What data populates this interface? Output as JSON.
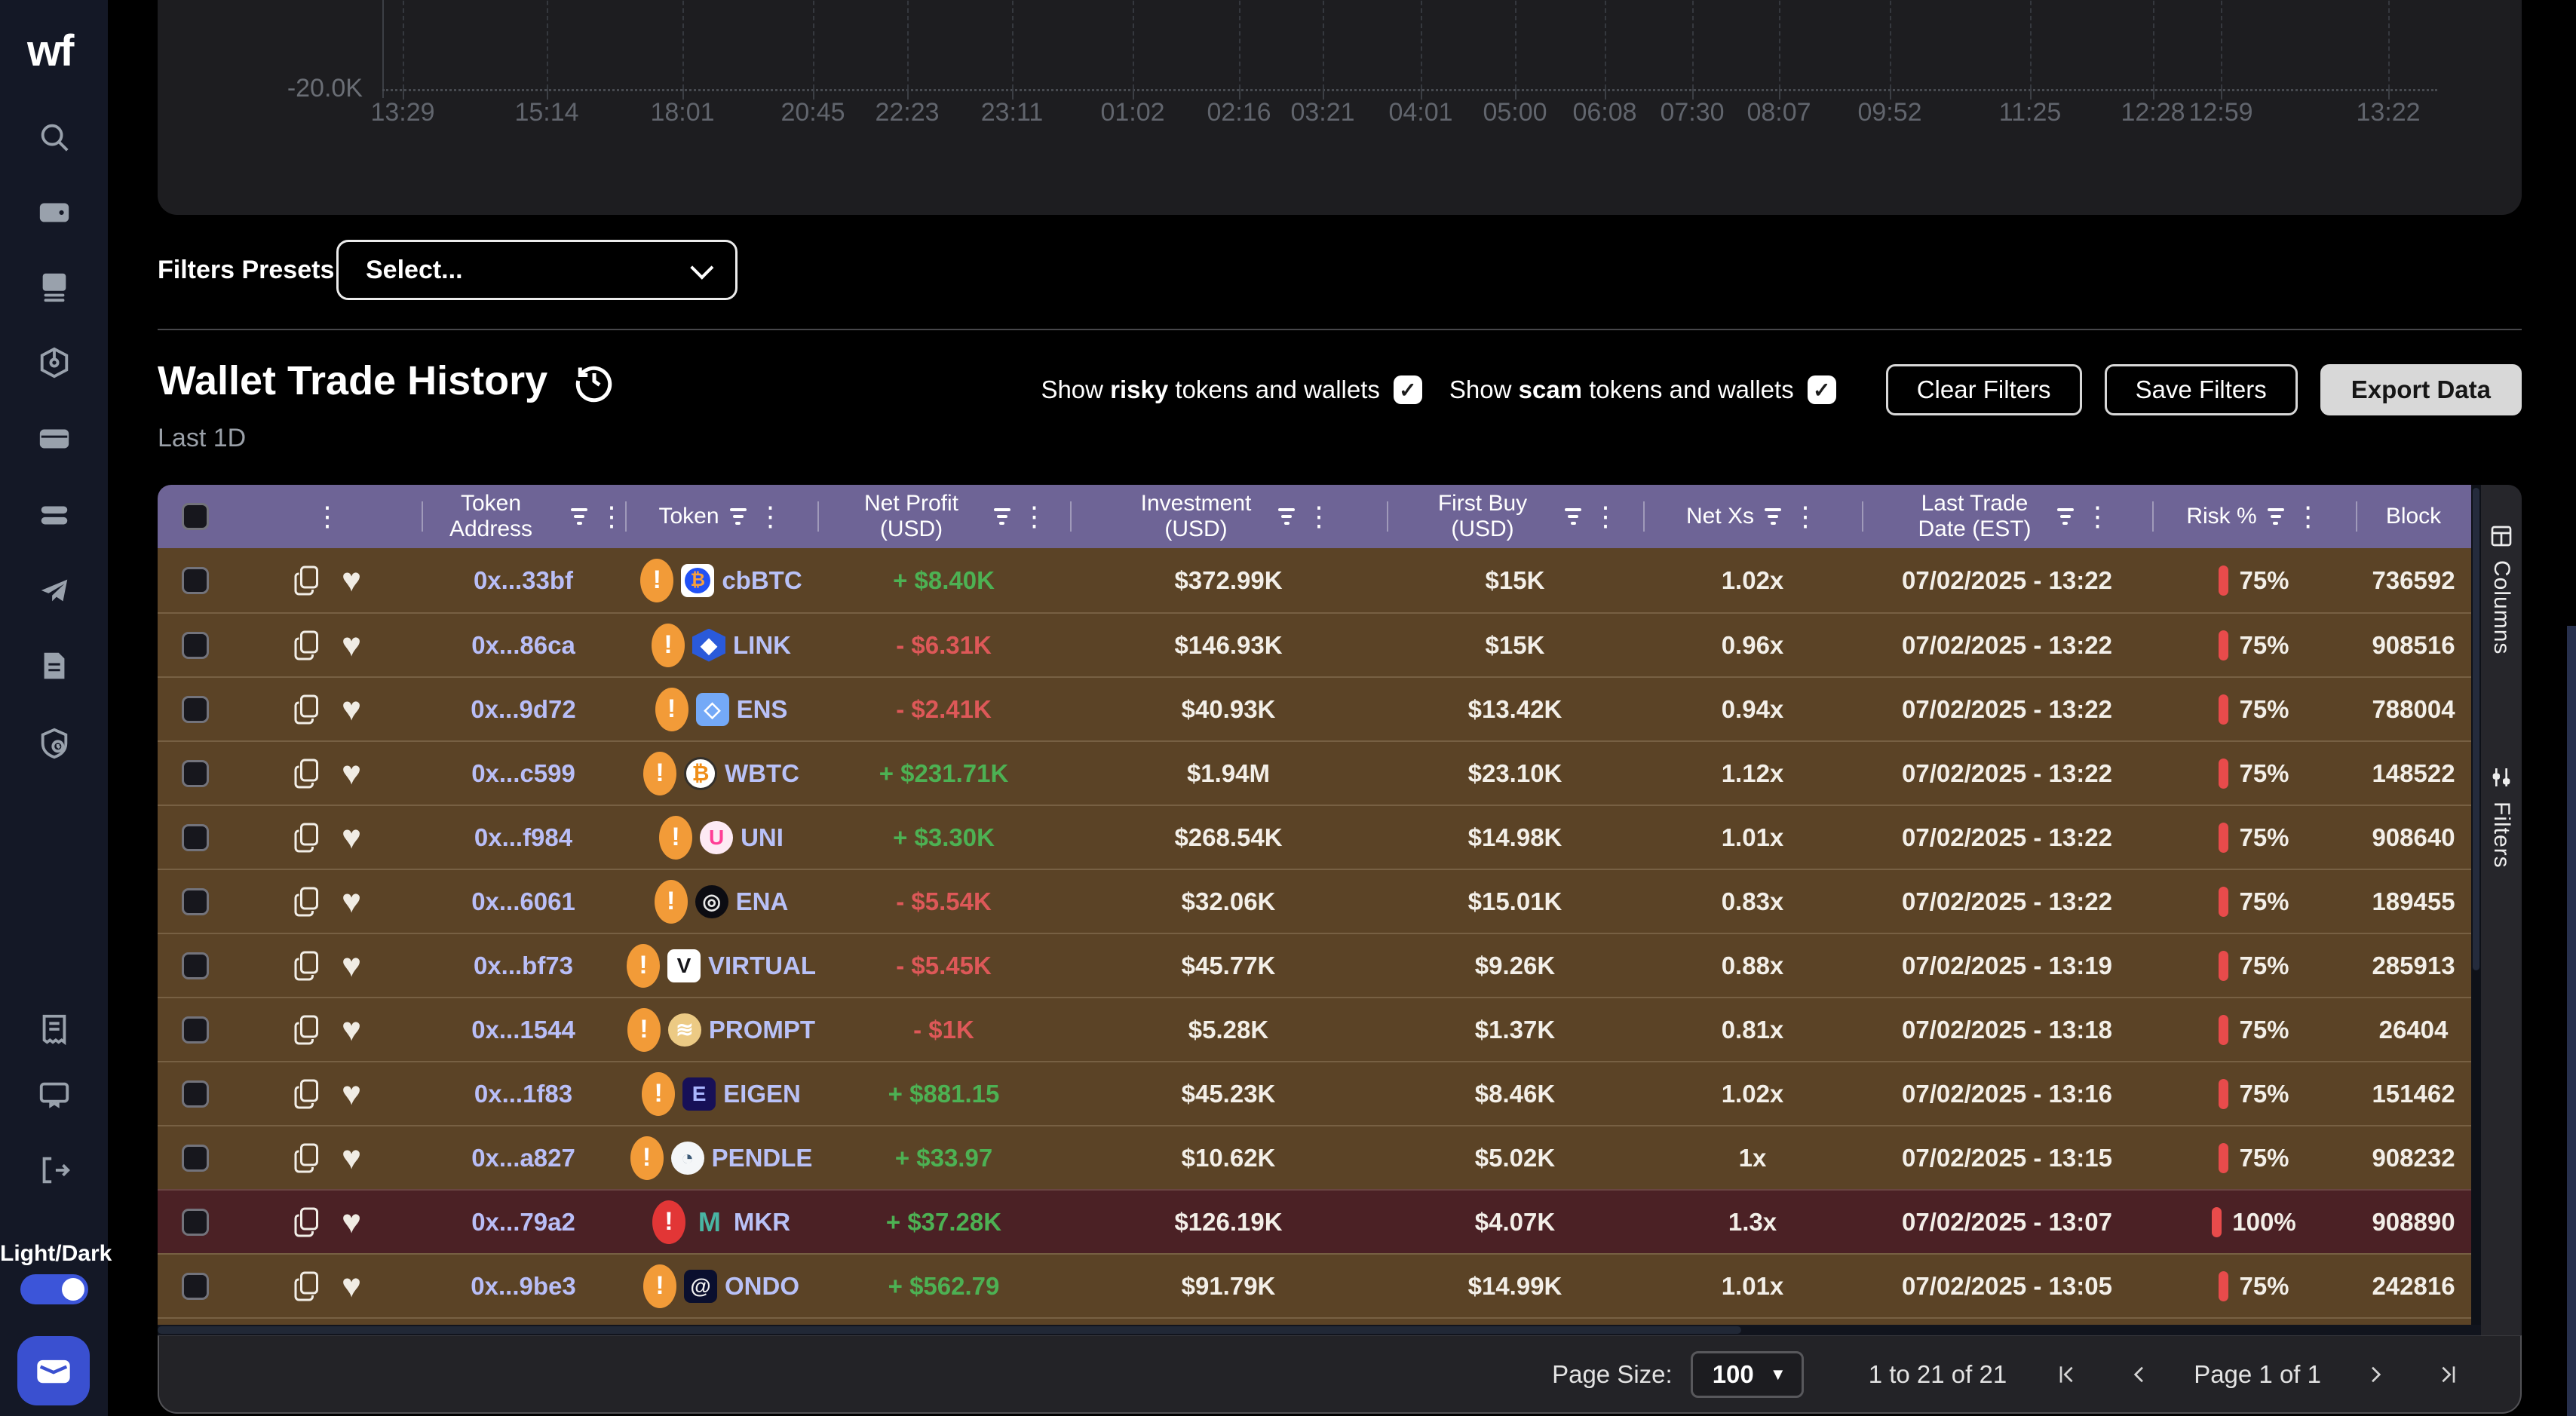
{
  "sidebar": {
    "logo": "wf",
    "light_dark_label": "Light/Dark",
    "nav_top": [
      "search",
      "wallet",
      "journal",
      "package",
      "card",
      "stack",
      "send",
      "document",
      "shield-history"
    ],
    "nav_bottom": [
      "receipt",
      "presentation",
      "logout"
    ]
  },
  "chart": {
    "y_tick": "-20.0K",
    "x_ticks": [
      {
        "label": "13:29",
        "x": 534
      },
      {
        "label": "15:14",
        "x": 725
      },
      {
        "label": "18:01",
        "x": 905
      },
      {
        "label": "20:45",
        "x": 1078
      },
      {
        "label": "22:23",
        "x": 1203
      },
      {
        "label": "23:11",
        "x": 1342
      },
      {
        "label": "01:02",
        "x": 1502
      },
      {
        "label": "02:16",
        "x": 1643
      },
      {
        "label": "03:21",
        "x": 1754
      },
      {
        "label": "04:01",
        "x": 1884
      },
      {
        "label": "05:00",
        "x": 2009
      },
      {
        "label": "06:08",
        "x": 2128
      },
      {
        "label": "07:30",
        "x": 2244
      },
      {
        "label": "08:07",
        "x": 2359
      },
      {
        "label": "09:52",
        "x": 2506
      },
      {
        "label": "11:25",
        "x": 2692
      },
      {
        "label": "12:28",
        "x": 2855
      },
      {
        "label": "12:59",
        "x": 2945
      },
      {
        "label": "13:22",
        "x": 3167
      }
    ]
  },
  "filters_presets": {
    "label": "Filters Presets",
    "placeholder": "Select..."
  },
  "section": {
    "title": "Wallet Trade History",
    "subtitle": "Last 1D"
  },
  "controls": {
    "risky": {
      "pre": "Show ",
      "bold": "risky",
      "post": " tokens and wallets",
      "checked": "✓"
    },
    "scam": {
      "pre": "Show ",
      "bold": "scam",
      "post": " tokens and wallets",
      "checked": "✓"
    },
    "clear": "Clear Filters",
    "save": "Save Filters",
    "export": "Export Data"
  },
  "table": {
    "headers": [
      "Token Address",
      "Token",
      "Net Profit (USD)",
      "Investment (USD)",
      "First Buy (USD)",
      "Net Xs",
      "Last Trade Date (EST)",
      "Risk %",
      "Block"
    ],
    "rows": [
      {
        "address": "0x...33bf",
        "token": "cbBTC",
        "warn_color": "#f29b38",
        "logo": {
          "shape": "square",
          "bg": "#ffffff",
          "inner": "#2151f5",
          "glyph": "₿",
          "fg": "#f7a03c"
        },
        "profit": "+ $8.40K",
        "dir": "pos",
        "investment": "$372.99K",
        "first_buy": "$15K",
        "net_xs": "1.02x",
        "last_trade": "07/02/2025 - 13:22",
        "risk": "75%",
        "block": "736592",
        "highlight": false
      },
      {
        "address": "0x...86ca",
        "token": "LINK",
        "warn_color": "#f29b38",
        "logo": {
          "shape": "hex",
          "bg": "#2a5ada",
          "glyph": "◆",
          "fg": "#ffffff"
        },
        "profit": "- $6.31K",
        "dir": "neg",
        "investment": "$146.93K",
        "first_buy": "$15K",
        "net_xs": "0.96x",
        "last_trade": "07/02/2025 - 13:22",
        "risk": "75%",
        "block": "908516",
        "highlight": false
      },
      {
        "address": "0x...9d72",
        "token": "ENS",
        "warn_color": "#f29b38",
        "logo": {
          "shape": "square",
          "bg": "#74a9f7",
          "glyph": "◇",
          "fg": "#ffffff"
        },
        "profit": "- $2.41K",
        "dir": "neg",
        "investment": "$40.93K",
        "first_buy": "$13.42K",
        "net_xs": "0.94x",
        "last_trade": "07/02/2025 - 13:22",
        "risk": "75%",
        "block": "788004",
        "highlight": false
      },
      {
        "address": "0x...c599",
        "token": "WBTC",
        "warn_color": "#f29b38",
        "logo": {
          "shape": "circle",
          "bg": "#ffffff",
          "ring": "#34302b",
          "glyph": "₿",
          "fg": "#ef8e19"
        },
        "profit": "+ $231.71K",
        "dir": "pos",
        "investment": "$1.94M",
        "first_buy": "$23.10K",
        "net_xs": "1.12x",
        "last_trade": "07/02/2025 - 13:22",
        "risk": "75%",
        "block": "148522",
        "highlight": false
      },
      {
        "address": "0x...f984",
        "token": "UNI",
        "warn_color": "#f29b38",
        "logo": {
          "shape": "circle",
          "bg": "#fdeaf4",
          "glyph": "U",
          "fg": "#ff3e96"
        },
        "profit": "+ $3.30K",
        "dir": "pos",
        "investment": "$268.54K",
        "first_buy": "$14.98K",
        "net_xs": "1.01x",
        "last_trade": "07/02/2025 - 13:22",
        "risk": "75%",
        "block": "908640",
        "highlight": false
      },
      {
        "address": "0x...6061",
        "token": "ENA",
        "warn_color": "#f29b38",
        "logo": {
          "shape": "circle",
          "bg": "#0c0c12",
          "glyph": "◎",
          "fg": "#e8e8e8"
        },
        "profit": "- $5.54K",
        "dir": "neg",
        "investment": "$32.06K",
        "first_buy": "$15.01K",
        "net_xs": "0.83x",
        "last_trade": "07/02/2025 - 13:22",
        "risk": "75%",
        "block": "189455",
        "highlight": false
      },
      {
        "address": "0x...bf73",
        "token": "VIRTUAL",
        "warn_color": "#f29b38",
        "logo": {
          "shape": "square",
          "bg": "#ffffff",
          "glyph": "V",
          "fg": "#15151a"
        },
        "profit": "- $5.45K",
        "dir": "neg",
        "investment": "$45.77K",
        "first_buy": "$9.26K",
        "net_xs": "0.88x",
        "last_trade": "07/02/2025 - 13:19",
        "risk": "75%",
        "block": "285913",
        "highlight": false
      },
      {
        "address": "0x...1544",
        "token": "PROMPT",
        "warn_color": "#f29b38",
        "logo": {
          "shape": "circle",
          "bg": "#ecca84",
          "glyph": "≋",
          "fg": "#ffffff"
        },
        "profit": "- $1K",
        "dir": "neg",
        "investment": "$5.28K",
        "first_buy": "$1.37K",
        "net_xs": "0.81x",
        "last_trade": "07/02/2025 - 13:18",
        "risk": "75%",
        "block": "26404",
        "highlight": false
      },
      {
        "address": "0x...1f83",
        "token": "EIGEN",
        "warn_color": "#f29b38",
        "logo": {
          "shape": "square",
          "bg": "#171057",
          "glyph": "E",
          "fg": "#aab6ff"
        },
        "profit": "+ $881.15",
        "dir": "pos",
        "investment": "$45.23K",
        "first_buy": "$8.46K",
        "net_xs": "1.02x",
        "last_trade": "07/02/2025 - 13:16",
        "risk": "75%",
        "block": "151462",
        "highlight": false
      },
      {
        "address": "0x...a827",
        "token": "PENDLE",
        "warn_color": "#f29b38",
        "logo": {
          "shape": "circle",
          "bg": "#f4f6f8",
          "glyph": "◔",
          "fg": "#3c5a77"
        },
        "profit": "+ $33.97",
        "dir": "pos",
        "investment": "$10.62K",
        "first_buy": "$5.02K",
        "net_xs": "1x",
        "last_trade": "07/02/2025 - 13:15",
        "risk": "75%",
        "block": "908232",
        "highlight": false
      },
      {
        "address": "0x...79a2",
        "token": "MKR",
        "warn_color": "#e23636",
        "logo": {
          "shape": "none",
          "glyph": "M",
          "fg": "#49b5a3"
        },
        "profit": "+ $37.28K",
        "dir": "pos",
        "investment": "$126.19K",
        "first_buy": "$4.07K",
        "net_xs": "1.3x",
        "last_trade": "07/02/2025 - 13:07",
        "risk": "100%",
        "block": "908890",
        "highlight": true
      },
      {
        "address": "0x...9be3",
        "token": "ONDO",
        "warn_color": "#f29b38",
        "logo": {
          "shape": "square",
          "bg": "#0a0f2e",
          "glyph": "@",
          "fg": "#f0f0f0"
        },
        "profit": "+ $562.79",
        "dir": "pos",
        "investment": "$91.79K",
        "first_buy": "$14.99K",
        "net_xs": "1.01x",
        "last_trade": "07/02/2025 - 13:05",
        "risk": "75%",
        "block": "242816",
        "highlight": false
      }
    ]
  },
  "side_panel": {
    "columns": "Columns",
    "filters": "Filters"
  },
  "pagination": {
    "page_size_label": "Page Size:",
    "page_size": "100",
    "range": "1 to 21 of 21",
    "page": "Page 1 of 1"
  },
  "colors": {
    "accent_blue": "#3a50d0",
    "header_purple": "#6e6496",
    "row_brown": "#5b4326",
    "row_highlight": "#4b2125",
    "risk_red": "#e84b4b",
    "profit_green": "#4db153",
    "loss_red": "#dd5858"
  }
}
